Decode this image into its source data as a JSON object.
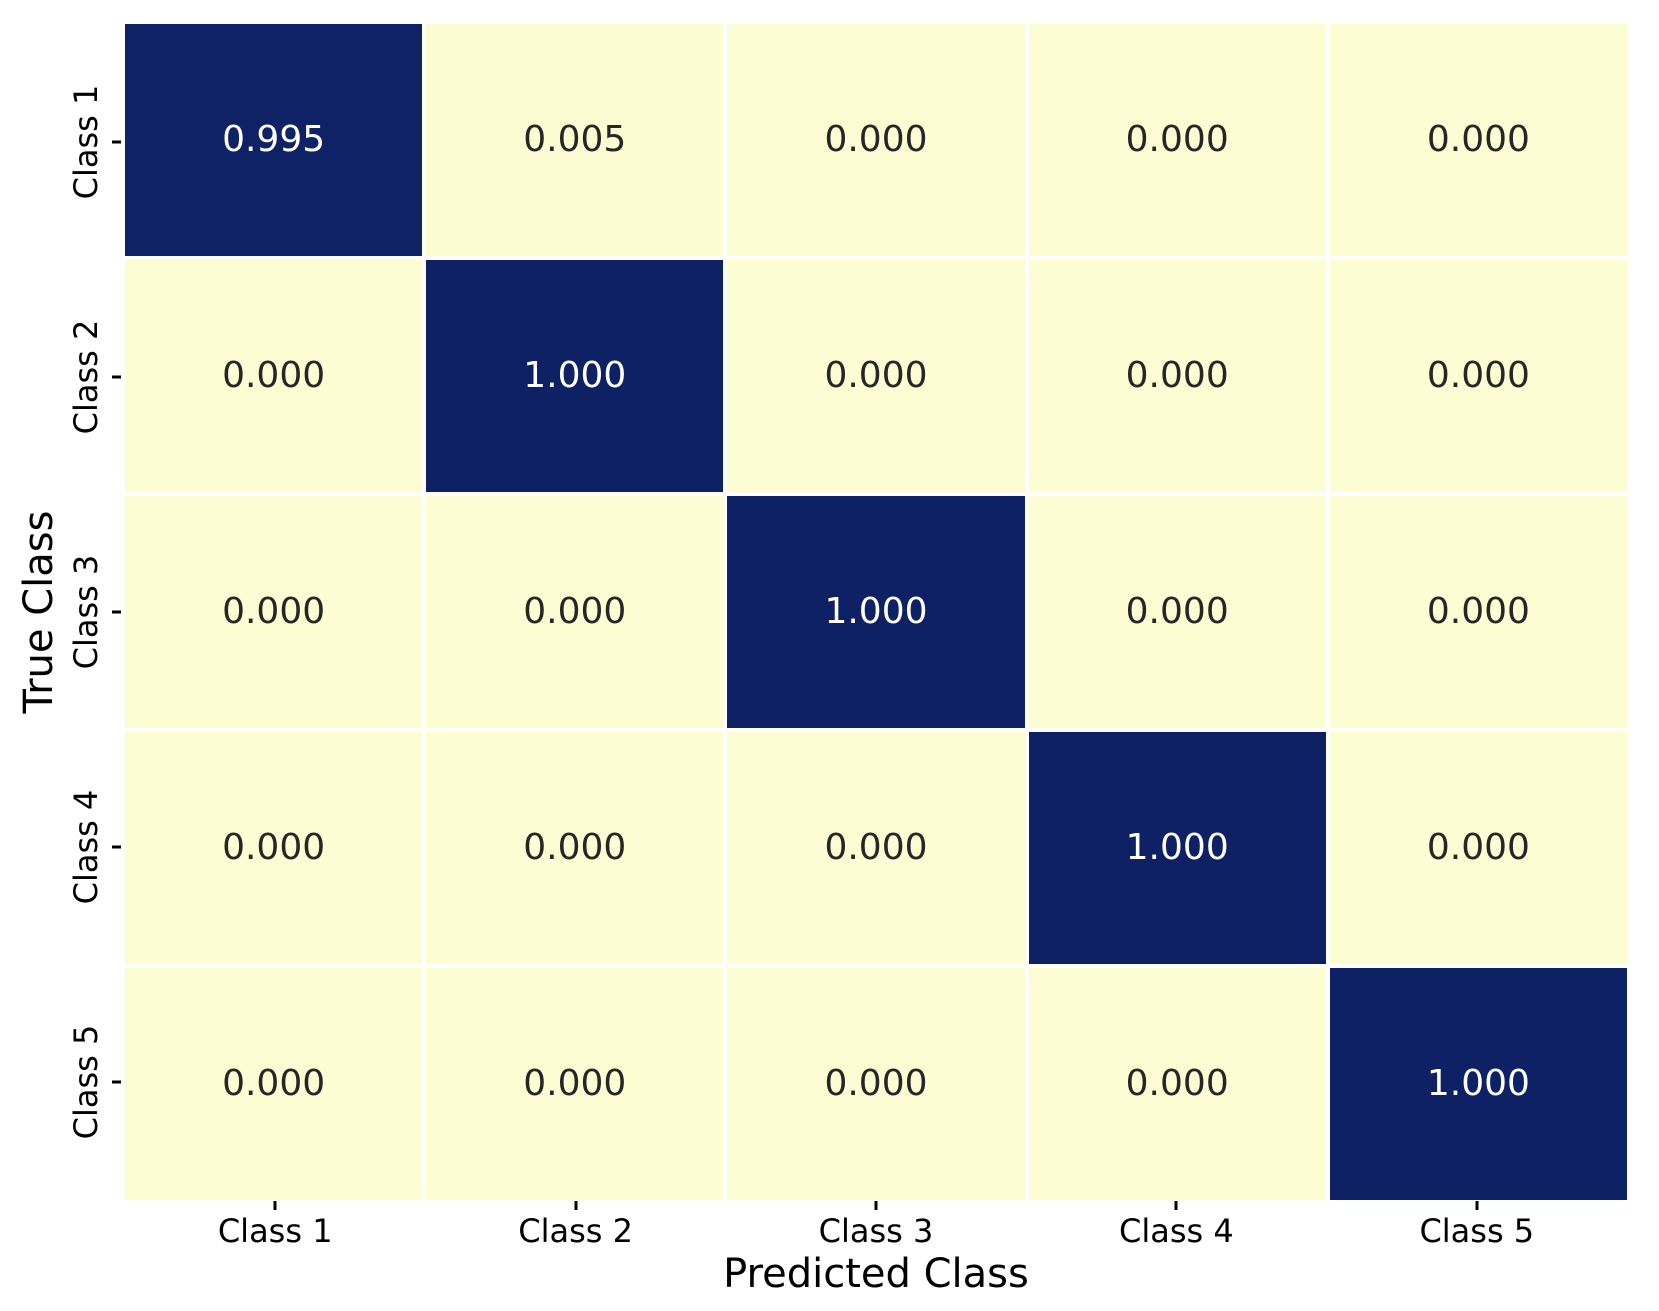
{
  "chart_data": {
    "type": "heatmap",
    "title": "",
    "xlabel": "Predicted Class",
    "ylabel": "True Class",
    "x_categories": [
      "Class 1",
      "Class 2",
      "Class 3",
      "Class 4",
      "Class 5"
    ],
    "y_categories": [
      "Class 1",
      "Class 2",
      "Class 3",
      "Class 4",
      "Class 5"
    ],
    "values": [
      [
        0.995,
        0.005,
        0.0,
        0.0,
        0.0
      ],
      [
        0.0,
        1.0,
        0.0,
        0.0,
        0.0
      ],
      [
        0.0,
        0.0,
        1.0,
        0.0,
        0.0
      ],
      [
        0.0,
        0.0,
        0.0,
        1.0,
        0.0
      ],
      [
        0.0,
        0.0,
        0.0,
        0.0,
        1.0
      ]
    ],
    "cell_labels": [
      [
        "0.995",
        "0.005",
        "0.000",
        "0.000",
        "0.000"
      ],
      [
        "0.000",
        "1.000",
        "0.000",
        "0.000",
        "0.000"
      ],
      [
        "0.000",
        "0.000",
        "1.000",
        "0.000",
        "0.000"
      ],
      [
        "0.000",
        "0.000",
        "0.000",
        "1.000",
        "0.000"
      ],
      [
        "0.000",
        "0.000",
        "0.000",
        "0.000",
        "1.000"
      ]
    ],
    "value_range": [
      0,
      1
    ],
    "grid": false,
    "legend": "none",
    "colors": {
      "low_color": "#fdfdd4",
      "high_color": "#0e2164",
      "text_on_dark": "#ffffff",
      "text_on_light": "#262626",
      "tick_color": "#000000",
      "background": "#ffffff"
    }
  }
}
